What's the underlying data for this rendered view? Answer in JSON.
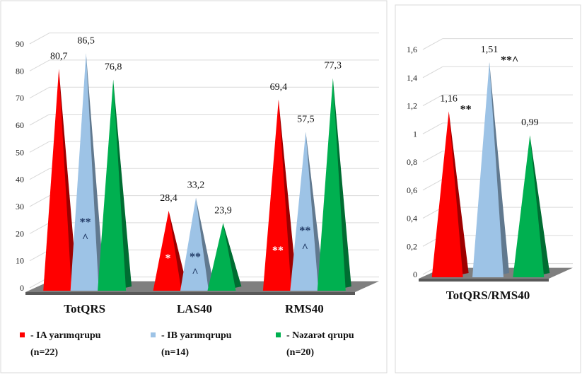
{
  "chart_data": [
    {
      "type": "bar",
      "subtype": "3d-cone",
      "categories": [
        "TotQRS",
        "LAS40",
        "RMS40"
      ],
      "series": [
        {
          "name": "- IA yarımqrupu",
          "name_note": "(n=22)",
          "values": [
            80.7,
            28.4,
            69.4
          ],
          "labels": [
            "80,7",
            "28,4",
            "69,4"
          ],
          "color": "#ff0000"
        },
        {
          "name": "- IB yarımqrupu",
          "name_note": "(n=14)",
          "values": [
            86.5,
            33.2,
            57.5
          ],
          "labels": [
            "86,5",
            "33,2",
            "57,5"
          ],
          "color": "#9dc3e6"
        },
        {
          "name": "- Nəzarət qrupu",
          "name_note": "(n=20)",
          "values": [
            76.8,
            23.9,
            77.3
          ],
          "labels": [
            "76,8",
            "23,9",
            "77,3"
          ],
          "color": "#00b050"
        }
      ],
      "ylim": [
        0,
        90
      ],
      "yticks": [
        "0",
        "10",
        "20",
        "30",
        "40",
        "50",
        "60",
        "70",
        "80",
        "90"
      ],
      "grid": true,
      "legend": "bottom",
      "annotations": [
        {
          "category": 0,
          "series": 1,
          "lines": [
            "**",
            "^"
          ],
          "color": "#1f3864"
        },
        {
          "category": 1,
          "series": 0,
          "lines": [
            "*"
          ],
          "color": "#ffffff"
        },
        {
          "category": 1,
          "series": 1,
          "lines": [
            "**",
            "^"
          ],
          "color": "#1f3864"
        },
        {
          "category": 2,
          "series": 0,
          "lines": [
            "**"
          ],
          "color": "#ffffff"
        },
        {
          "category": 2,
          "series": 1,
          "lines": [
            "**",
            "^"
          ],
          "color": "#1f3864"
        }
      ]
    },
    {
      "type": "bar",
      "subtype": "3d-cone",
      "categories": [
        "TotQRS/RMS40"
      ],
      "series": [
        {
          "values": [
            1.16
          ],
          "labels": [
            "1,16"
          ],
          "color": "#ff0000",
          "mark": "**"
        },
        {
          "values": [
            1.51
          ],
          "labels": [
            "1,51"
          ],
          "color": "#9dc3e6",
          "mark": "**^"
        },
        {
          "values": [
            0.99
          ],
          "labels": [
            "0,99"
          ],
          "color": "#00b050",
          "mark": ""
        }
      ],
      "ylim": [
        0,
        1.6
      ],
      "yticks": [
        "0",
        "0,2",
        "0,4",
        "0,6",
        "0,8",
        "1",
        "1,2",
        "1,4",
        "1,6"
      ],
      "grid": true
    }
  ]
}
